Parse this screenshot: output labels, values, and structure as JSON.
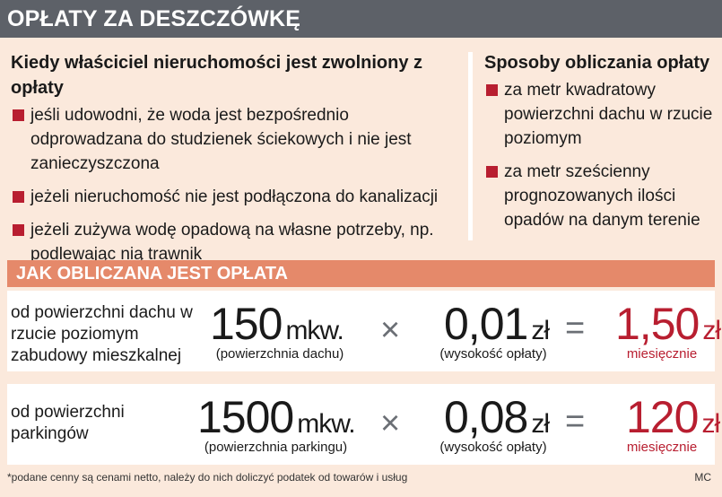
{
  "title": "OPŁATY ZA DESZCZÓWKĘ",
  "exemption": {
    "heading": "Kiedy właściciel nieruchomości jest zwolniony z opłaty",
    "items": [
      "jeśli udowodni, że woda jest bezpośrednio odprowadzana do studzienek ściekowych i nie jest zanieczyszczona",
      "jeżeli nieruchomość nie jest podłączona do kanalizacji",
      "jeżeli zużywa wodę opadową na własne potrzeby, np. podlewając nią trawnik"
    ]
  },
  "methods": {
    "heading": "Sposoby obliczania opłaty",
    "items": [
      "za metr kwadratowy powierzchni dachu w rzucie poziomym",
      "za metr sześcienny prognozowanych ilości opadów na danym terenie"
    ]
  },
  "calc": {
    "heading": "JAK OBLICZANA JEST OPŁATA",
    "rows": [
      {
        "label": "od powierzchni dachu w rzucie poziomym zabudowy mieszkalnej",
        "area_value": "150",
        "area_unit": "mkw.",
        "area_caption": "(powierzchnia dachu)",
        "rate_value": "0,01",
        "rate_unit": "zł",
        "rate_caption": "(wysokość opłaty)",
        "result_value": "1,50",
        "result_unit": "zł",
        "result_caption": "miesięcznie"
      },
      {
        "label": "od powierzchni parkingów",
        "area_value": "1500",
        "area_unit": "mkw.",
        "area_caption": "(powierzchnia parkingu)",
        "rate_value": "0,08",
        "rate_unit": "zł",
        "rate_caption": "(wysokość opłaty)",
        "result_value": "120",
        "result_unit": "zł",
        "result_caption": "miesięcznie"
      }
    ],
    "times_symbol": "×",
    "equals_symbol": "="
  },
  "footnote": "*podane cenny są cenami netto, należy do nich doliczyć podatek od towarów i usług",
  "credit": "MC",
  "colors": {
    "title_bg": "#5d6168",
    "panel_bg": "#fbe9dc",
    "section_bg": "#e5896a",
    "accent_red": "#b81e30"
  }
}
